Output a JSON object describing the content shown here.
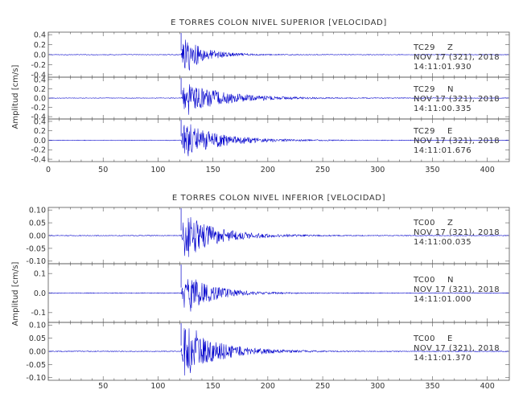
{
  "chart_data": [
    {
      "type": "line",
      "title": "E TORRES COLON NIVEL SUPERIOR [VELOCIDAD]",
      "xlabel": "",
      "ylabel": "Amplitud [cm/s]",
      "xlim": [
        0,
        420
      ],
      "xticks": [
        "0",
        "50",
        "100",
        "150",
        "200",
        "250",
        "300",
        "350",
        "400"
      ],
      "grid": false,
      "traces": [
        {
          "station": "TC29",
          "component": "Z",
          "date": "NOV 17 (321), 2018",
          "time": "14:11:01.930",
          "ylim": [
            -0.45,
            0.45
          ],
          "yticks": [
            "0.4",
            "0.2",
            "0.0",
            "-0.2",
            "-0.4"
          ],
          "onset": 121,
          "peak": 0.42,
          "dur": 60,
          "noise": 0.006
        },
        {
          "station": "TC29",
          "component": "N",
          "date": "NOV 17 (321), 2018",
          "time": "14:11:00.335",
          "ylim": [
            -0.45,
            0.45
          ],
          "yticks": [
            "0.4",
            "0.2",
            "0.0",
            "-0.2",
            "-0.4"
          ],
          "onset": 121,
          "peak": 0.4,
          "dur": 110,
          "noise": 0.006
        },
        {
          "station": "TC29",
          "component": "E",
          "date": "NOV 17 (321), 2018",
          "time": "14:11:01.676",
          "ylim": [
            -0.45,
            0.45
          ],
          "yticks": [
            "0.4",
            "0.2",
            "0.0",
            "-0.2",
            "-0.4"
          ],
          "onset": 121,
          "peak": 0.42,
          "dur": 100,
          "noise": 0.006
        }
      ]
    },
    {
      "type": "line",
      "title": "E TORRES COLON NIVEL INFERIOR [VELOCIDAD]",
      "xlabel": "",
      "ylabel": "Amplitud [cm/s]",
      "xlim": [
        0,
        420
      ],
      "xticks": [
        "50",
        "100",
        "150",
        "200",
        "250",
        "300",
        "350",
        "400"
      ],
      "grid": false,
      "traces": [
        {
          "station": "TC00",
          "component": "Z",
          "date": "NOV 17 (321), 2018",
          "time": "14:11:00.035",
          "ylim": [
            -0.11,
            0.11
          ],
          "yticks": [
            "0.10",
            "0.05",
            "0.00",
            "-0.05",
            "-0.10"
          ],
          "onset": 121,
          "peak": 0.1,
          "dur": 90,
          "noise": 0.0015
        },
        {
          "station": "TC00",
          "component": "N",
          "date": "NOV 17 (321), 2018",
          "time": "14:11:01.000",
          "ylim": [
            -0.15,
            0.15
          ],
          "yticks": [
            "0.1",
            "0.0",
            "-0.1"
          ],
          "onset": 121,
          "peak": 0.14,
          "dur": 70,
          "noise": 0.002
        },
        {
          "station": "TC00",
          "component": "E",
          "date": "NOV 17 (321), 2018",
          "time": "14:11:01.370",
          "ylim": [
            -0.11,
            0.11
          ],
          "yticks": [
            "0.10",
            "0.05",
            "0.00",
            "-0.05",
            "-0.10"
          ],
          "onset": 121,
          "peak": 0.11,
          "dur": 95,
          "noise": 0.0015
        }
      ]
    }
  ],
  "colors": {
    "trace": "#0000cc",
    "axis": "#555555",
    "text": "#333333"
  }
}
